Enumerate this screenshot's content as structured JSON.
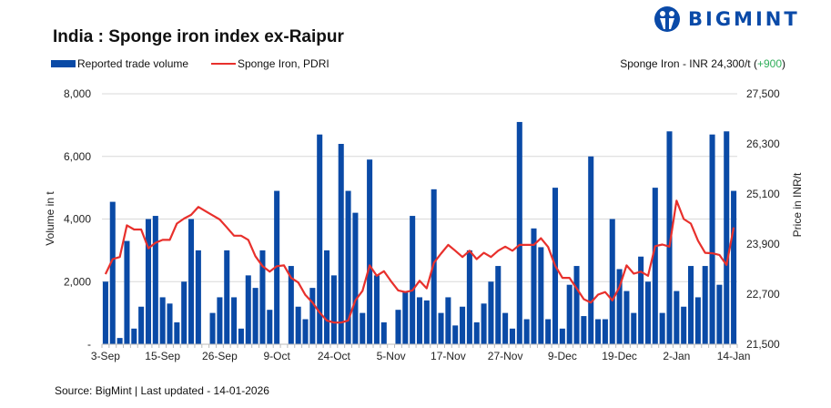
{
  "title": "India : Sponge iron index ex-Raipur",
  "logo": {
    "text": "BIGMINT",
    "color": "#0a4aa8"
  },
  "legend": {
    "bars": "Reported trade volume",
    "line": "Sponge Iron, PDRI"
  },
  "price_note": {
    "prefix": "Sponge Iron - INR 24,300/t (",
    "change": "+900",
    "suffix": ")"
  },
  "source": "Source: BigMint | Last updated - 14-01-2026",
  "chart_data": {
    "type": "bar+line",
    "title": "India : Sponge iron index ex-Raipur",
    "ylabel": "Volume in t",
    "y2label": "Price in INR/t",
    "ylim": [
      0,
      8000
    ],
    "y2lim": [
      21500,
      27500
    ],
    "y_ticks": [
      "-",
      "2,000",
      "4,000",
      "6,000",
      "8,000"
    ],
    "y2_ticks": [
      "21,500",
      "22,700",
      "23,900",
      "25,100",
      "26,300",
      "27,500"
    ],
    "grid": true,
    "x_ticks": [
      {
        "label": "3-Sep",
        "index": 0
      },
      {
        "label": "15-Sep",
        "index": 8
      },
      {
        "label": "26-Sep",
        "index": 16
      },
      {
        "label": "9-Oct",
        "index": 24
      },
      {
        "label": "24-Oct",
        "index": 32
      },
      {
        "label": "5-Nov",
        "index": 40
      },
      {
        "label": "17-Nov",
        "index": 48
      },
      {
        "label": "27-Nov",
        "index": 56
      },
      {
        "label": "9-Dec",
        "index": 64
      },
      {
        "label": "19-Dec",
        "index": 72
      },
      {
        "label": "2-Jan",
        "index": 80
      },
      {
        "label": "14-Jan",
        "index": 88
      }
    ],
    "series": [
      {
        "name": "Reported trade volume",
        "type": "bar",
        "color": "#0a4aa6",
        "axis": "left",
        "values": [
          2000,
          4550,
          200,
          3300,
          500,
          1200,
          4000,
          4100,
          1500,
          1300,
          700,
          2000,
          4000,
          3000,
          null,
          1000,
          1500,
          3000,
          1500,
          500,
          2200,
          1800,
          3000,
          1100,
          4900,
          null,
          2500,
          1200,
          800,
          1800,
          6700,
          3000,
          2200,
          6400,
          4900,
          4200,
          1000,
          5900,
          2200,
          700,
          null,
          1100,
          1700,
          4100,
          1500,
          1400,
          4950,
          1000,
          1500,
          600,
          1200,
          3000,
          700,
          1300,
          2000,
          2500,
          1000,
          500,
          7100,
          800,
          3700,
          3100,
          800,
          5000,
          500,
          1900,
          2500,
          900,
          6000,
          800,
          800,
          4000,
          2400,
          1700,
          1000,
          2800,
          2000,
          5000,
          1000,
          6800,
          1700,
          1200,
          2500,
          1500,
          2500,
          6700,
          1900,
          6800,
          4900
        ]
      },
      {
        "name": "Sponge Iron, PDRI",
        "type": "line",
        "color": "#e8302c",
        "axis": "right",
        "values": [
          23180,
          23540,
          23590,
          24350,
          24250,
          24250,
          23800,
          23930,
          24000,
          24000,
          24390,
          24510,
          24600,
          24790,
          24690,
          24590,
          24490,
          24300,
          24100,
          24100,
          24000,
          23610,
          23370,
          23240,
          23370,
          23390,
          23090,
          22980,
          22680,
          22500,
          22260,
          22070,
          22020,
          22020,
          22070,
          22550,
          22780,
          23390,
          23140,
          23250,
          23010,
          22790,
          22750,
          22790,
          23020,
          22840,
          23450,
          23670,
          23880,
          23740,
          23590,
          23740,
          23540,
          23690,
          23590,
          23740,
          23840,
          23740,
          23880,
          23880,
          23880,
          24040,
          23830,
          23380,
          23090,
          23090,
          22840,
          22580,
          22500,
          22690,
          22750,
          22550,
          22870,
          23390,
          23190,
          23240,
          23140,
          23850,
          23890,
          23840,
          24940,
          24500,
          24390,
          23980,
          23690,
          23680,
          23640,
          23400,
          24300
        ]
      }
    ]
  }
}
